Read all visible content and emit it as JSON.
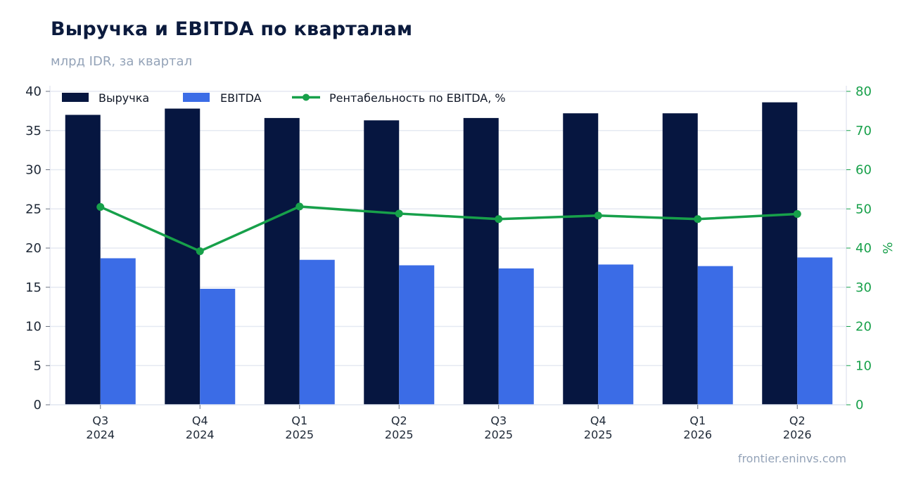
{
  "header": {
    "title": "Выручка и EBITDA по кварталам",
    "subtitle": "млрд IDR, за квартал"
  },
  "footer": {
    "source": "frontier.eninvs.com"
  },
  "colors": {
    "revenue": "#061640",
    "ebitda": "#3b6ce6",
    "margin": "#17a04a",
    "grid": "#e5e9f2",
    "axis_text": "#1f2937"
  },
  "chart_data": {
    "type": "bar",
    "categories": [
      [
        "Q3",
        "2024"
      ],
      [
        "Q4",
        "2024"
      ],
      [
        "Q1",
        "2025"
      ],
      [
        "Q2",
        "2025"
      ],
      [
        "Q3",
        "2025"
      ],
      [
        "Q4",
        "2025"
      ],
      [
        "Q1",
        "2026"
      ],
      [
        "Q2",
        "2026"
      ]
    ],
    "series": [
      {
        "name": "Выручка",
        "type": "bar",
        "axis": "left",
        "values": [
          37.0,
          37.8,
          36.6,
          36.3,
          36.6,
          37.2,
          37.2,
          38.6
        ]
      },
      {
        "name": "EBITDA",
        "type": "bar",
        "axis": "left",
        "values": [
          18.7,
          14.8,
          18.5,
          17.8,
          17.4,
          17.9,
          17.7,
          18.8
        ]
      },
      {
        "name": "Рентабельность по EBITDA, %",
        "type": "line",
        "axis": "right",
        "values": [
          50.5,
          39.2,
          50.6,
          48.8,
          47.4,
          48.3,
          47.4,
          48.7
        ]
      }
    ],
    "y_left": {
      "min": 0,
      "max": 40,
      "ticks": [
        0,
        5,
        10,
        15,
        20,
        25,
        30,
        35,
        40
      ],
      "label": ""
    },
    "y_right": {
      "min": 0,
      "max": 80,
      "ticks": [
        0,
        10,
        20,
        30,
        40,
        50,
        60,
        70,
        80
      ],
      "label": "%"
    },
    "grid": true,
    "legend": "top-left"
  }
}
